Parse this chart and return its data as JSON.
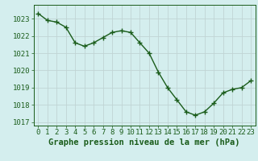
{
  "x": [
    0,
    1,
    2,
    3,
    4,
    5,
    6,
    7,
    8,
    9,
    10,
    11,
    12,
    13,
    14,
    15,
    16,
    17,
    18,
    19,
    20,
    21,
    22,
    23
  ],
  "y": [
    1023.3,
    1022.9,
    1022.8,
    1022.5,
    1021.6,
    1021.4,
    1021.6,
    1021.9,
    1022.2,
    1022.3,
    1022.2,
    1021.6,
    1021.0,
    1019.9,
    1019.0,
    1018.3,
    1017.6,
    1017.4,
    1017.6,
    1018.1,
    1018.7,
    1018.9,
    1019.0,
    1019.4
  ],
  "line_color": "#1a5c1a",
  "marker": "+",
  "marker_size": 4,
  "marker_edge_width": 1.0,
  "bg_color": "#d4eeee",
  "grid_color": "#c0d4d4",
  "xlabel": "Graphe pression niveau de la mer (hPa)",
  "xlabel_color": "#1a5c1a",
  "ylim": [
    1016.8,
    1023.8
  ],
  "xlim": [
    -0.5,
    23.5
  ],
  "font_color": "#1a5c1a",
  "font_size": 6.5,
  "xlabel_fontsize": 7.5,
  "linewidth": 1.0,
  "yticks": [
    1017,
    1018,
    1019,
    1020,
    1021,
    1022,
    1023
  ]
}
